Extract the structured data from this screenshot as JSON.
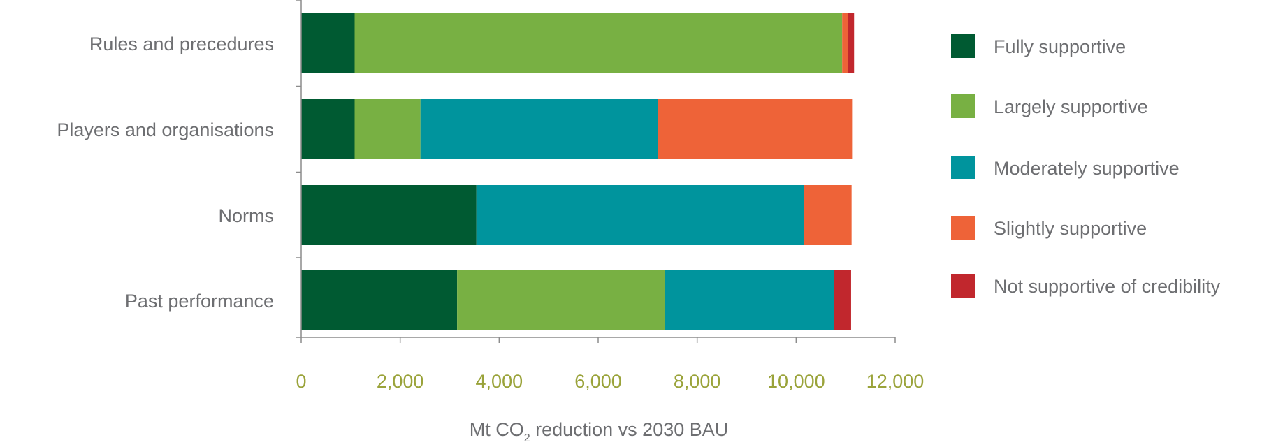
{
  "chart_data": {
    "type": "bar",
    "orientation": "horizontal",
    "stacked": true,
    "categories": [
      "Rules and precedures",
      "Players and organisations",
      "Norms",
      "Past performance"
    ],
    "series": [
      {
        "name": "Fully supportive",
        "color": "#005a32",
        "values": [
          1080,
          1080,
          3540,
          3150
        ]
      },
      {
        "name": "Largely supportive",
        "color": "#78b043",
        "values": [
          9850,
          1330,
          0,
          4200
        ]
      },
      {
        "name": "Moderately supportive",
        "color": "#00949d",
        "values": [
          0,
          4800,
          6620,
          3410
        ]
      },
      {
        "name": "Slightly supportive",
        "color": "#ee6338",
        "values": [
          120,
          3920,
          960,
          0
        ]
      },
      {
        "name": "Not supportive of credibility",
        "color": "#c1272d",
        "values": [
          120,
          0,
          0,
          350
        ]
      }
    ],
    "xlabel": {
      "prefix": "Mt CO",
      "subscript": "2",
      "suffix": " reduction vs 2030 BAU"
    },
    "xlim": [
      0,
      12000
    ],
    "xticks": [
      0,
      2000,
      4000,
      6000,
      8000,
      10000,
      12000
    ],
    "xtick_labels": [
      "0",
      "2,000",
      "4,000",
      "6,000",
      "8,000",
      "10,000",
      "12,000"
    ],
    "grid": false,
    "legend_position": "right"
  }
}
